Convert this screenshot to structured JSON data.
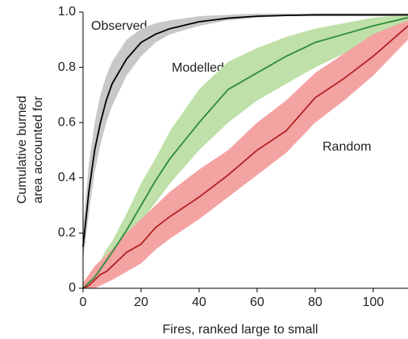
{
  "chart_data": {
    "type": "line",
    "xlabel": "Fires, ranked large to small",
    "ylabel": [
      "Cumulative burned",
      "area accounted for"
    ],
    "x": [
      0,
      2,
      4,
      6,
      8,
      10,
      15,
      20,
      25,
      30,
      40,
      50,
      60,
      70,
      80,
      90,
      100,
      112
    ],
    "xlim": [
      0,
      112
    ],
    "xticks": [
      0,
      20,
      40,
      60,
      80,
      100
    ],
    "ylim": [
      0,
      1
    ],
    "yticks": [
      0,
      0.2,
      0.4,
      0.6,
      0.8,
      {
        "value": 1,
        "label": "1.0"
      }
    ],
    "series": [
      {
        "name": "Observed",
        "color": "#000000",
        "band_color": "#c8c8c8",
        "values": [
          0.15,
          0.35,
          0.5,
          0.6,
          0.68,
          0.74,
          0.83,
          0.89,
          0.92,
          0.94,
          0.965,
          0.978,
          0.985,
          0.988,
          0.99,
          0.99,
          0.99,
          0.99
        ],
        "lower": [
          0.1,
          0.27,
          0.42,
          0.52,
          0.6,
          0.66,
          0.77,
          0.84,
          0.89,
          0.92,
          0.95,
          0.97,
          0.98,
          0.985,
          0.985,
          0.985,
          0.985,
          0.985
        ],
        "upper": [
          0.22,
          0.45,
          0.6,
          0.7,
          0.77,
          0.82,
          0.9,
          0.94,
          0.96,
          0.97,
          0.985,
          0.99,
          0.995,
          0.995,
          0.995,
          0.995,
          0.995,
          0.995
        ]
      },
      {
        "name": "Modelled",
        "color": "#2e8b3a",
        "band_color": "#bfe0a8",
        "values": [
          0,
          0.02,
          0.04,
          0.07,
          0.1,
          0.13,
          0.21,
          0.3,
          0.39,
          0.47,
          0.6,
          0.72,
          0.78,
          0.84,
          0.89,
          0.92,
          0.95,
          0.98
        ],
        "lower": [
          0,
          0.01,
          0.02,
          0.04,
          0.06,
          0.09,
          0.16,
          0.24,
          0.31,
          0.38,
          0.5,
          0.6,
          0.68,
          0.74,
          0.8,
          0.85,
          0.9,
          0.96
        ],
        "upper": [
          0,
          0.04,
          0.07,
          0.1,
          0.14,
          0.17,
          0.27,
          0.38,
          0.47,
          0.57,
          0.72,
          0.82,
          0.87,
          0.91,
          0.94,
          0.96,
          0.98,
          0.99
        ]
      },
      {
        "name": "Random",
        "color": "#b22222",
        "band_color": "#f4a3a3",
        "values": [
          0,
          0.01,
          0.03,
          0.05,
          0.06,
          0.08,
          0.13,
          0.16,
          0.22,
          0.26,
          0.33,
          0.41,
          0.5,
          0.57,
          0.69,
          0.76,
          0.84,
          0.95
        ],
        "lower": [
          0,
          0,
          0,
          0.01,
          0.02,
          0.03,
          0.06,
          0.09,
          0.14,
          0.18,
          0.25,
          0.33,
          0.41,
          0.49,
          0.6,
          0.68,
          0.77,
          0.9
        ],
        "upper": [
          0.02,
          0.05,
          0.08,
          0.1,
          0.12,
          0.14,
          0.2,
          0.25,
          0.3,
          0.35,
          0.43,
          0.5,
          0.6,
          0.68,
          0.78,
          0.85,
          0.92,
          0.97
        ]
      }
    ]
  }
}
